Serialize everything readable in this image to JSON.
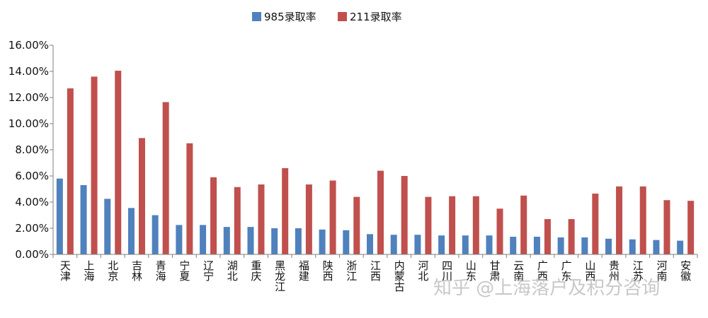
{
  "chart_data": {
    "type": "bar",
    "categories": [
      "天津",
      "上海",
      "北京",
      "吉林",
      "青海",
      "宁夏",
      "辽宁",
      "湖北",
      "重庆",
      "黑龙江",
      "福建",
      "陕西",
      "浙江",
      "江西",
      "内蒙古",
      "河北",
      "四川",
      "山东",
      "甘肃",
      "云南",
      "广西",
      "广东",
      "山西",
      "贵州",
      "江苏",
      "河南",
      "安徽"
    ],
    "series": [
      {
        "name": "985录取率",
        "color": "#4f81bd",
        "values": [
          5.8,
          5.3,
          4.25,
          3.55,
          3.0,
          2.25,
          2.25,
          2.1,
          2.1,
          2.0,
          2.0,
          1.9,
          1.85,
          1.55,
          1.5,
          1.5,
          1.45,
          1.45,
          1.45,
          1.35,
          1.35,
          1.3,
          1.3,
          1.2,
          1.15,
          1.1,
          1.05
        ]
      },
      {
        "name": "211录取率",
        "color": "#c0504d",
        "values": [
          12.7,
          13.6,
          14.05,
          8.9,
          11.65,
          8.5,
          5.9,
          5.15,
          5.35,
          6.6,
          5.35,
          5.65,
          4.4,
          6.4,
          6.0,
          4.4,
          4.45,
          4.45,
          3.5,
          4.5,
          2.7,
          2.7,
          4.65,
          5.2,
          5.2,
          4.15,
          4.1
        ]
      }
    ],
    "yticks": [
      "0.00%",
      "2.00%",
      "4.00%",
      "6.00%",
      "8.00%",
      "10.00%",
      "12.00%",
      "14.00%",
      "16.00%"
    ],
    "ylim": [
      0,
      16
    ],
    "grid": false,
    "legend_position": "top"
  },
  "watermark": "知乎 @上海落户及积分咨询"
}
